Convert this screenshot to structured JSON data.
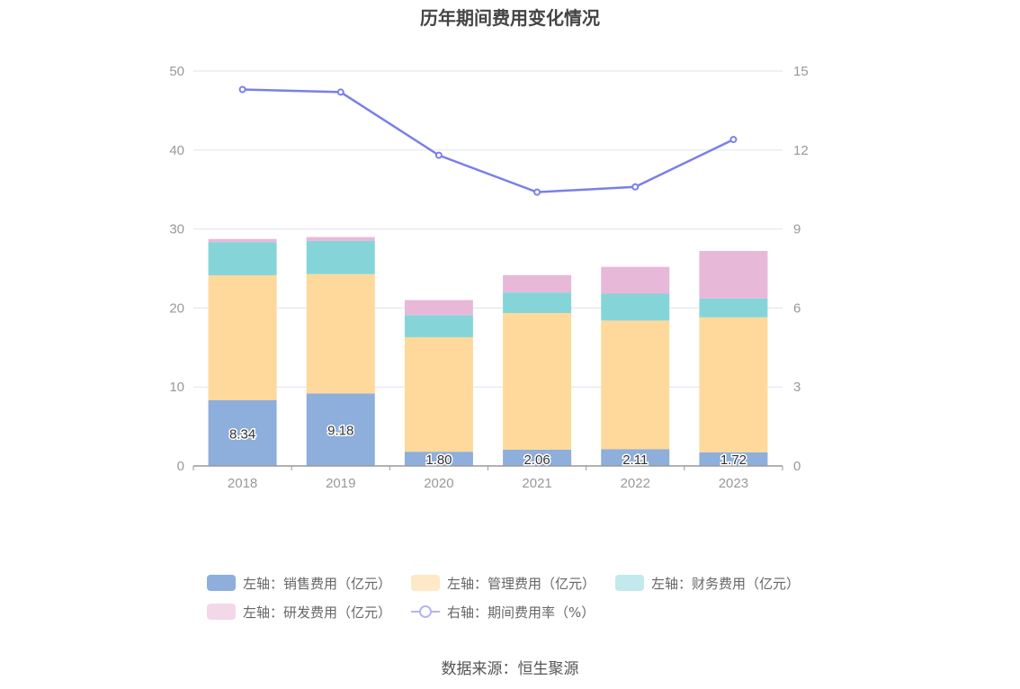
{
  "chart_data": {
    "type": "bar",
    "title": "历年期间费用变化情况",
    "categories": [
      "2018",
      "2019",
      "2020",
      "2021",
      "2022",
      "2023"
    ],
    "stacked": true,
    "series": [
      {
        "name": "左轴：销售费用（亿元）",
        "axis": "left",
        "type": "bar",
        "color": "#8eaedb",
        "values": [
          8.34,
          9.18,
          1.8,
          2.06,
          2.11,
          1.72
        ],
        "labels_shown": true
      },
      {
        "name": "左轴：管理费用（亿元）",
        "axis": "left",
        "type": "bar",
        "color": "#fed99b",
        "values": [
          15.8,
          15.1,
          14.5,
          17.3,
          16.3,
          17.1
        ]
      },
      {
        "name": "左轴：财务费用（亿元）",
        "axis": "left",
        "type": "bar",
        "color": "#85d5d8",
        "values": [
          4.2,
          4.2,
          2.8,
          2.6,
          3.4,
          2.4
        ]
      },
      {
        "name": "左轴：研发费用（亿元）",
        "axis": "left",
        "type": "bar",
        "color": "#e8b8d9",
        "values": [
          0.4,
          0.5,
          1.9,
          2.2,
          3.4,
          6.0
        ]
      },
      {
        "name": "右轴：期间费用率（%）",
        "axis": "right",
        "type": "line",
        "color": "#7b7fe8",
        "values": [
          14.3,
          14.2,
          11.8,
          10.4,
          10.6,
          12.4
        ]
      }
    ],
    "y_left": {
      "min": 0,
      "max": 50,
      "ticks": [
        0,
        10,
        20,
        30,
        40,
        50
      ]
    },
    "y_right": {
      "min": 0,
      "max": 15,
      "ticks": [
        0,
        3,
        6,
        9,
        12,
        15
      ]
    },
    "grid": true,
    "legend_position": "bottom"
  },
  "legend": {
    "items": [
      {
        "label": "左轴：销售费用（亿元）",
        "color": "#8eaedb",
        "kind": "box"
      },
      {
        "label": "左轴：管理费用（亿元）",
        "color": "#fee8c5",
        "kind": "box"
      },
      {
        "label": "左轴：财务费用（亿元）",
        "color": "#c2e9eb",
        "kind": "box"
      },
      {
        "label": "左轴：研发费用（亿元）",
        "color": "#f3d8ea",
        "kind": "box"
      },
      {
        "label": "右轴：期间费用率（%）",
        "color": "#b3b5ef",
        "kind": "line"
      }
    ]
  },
  "source": "数据来源：恒生聚源"
}
